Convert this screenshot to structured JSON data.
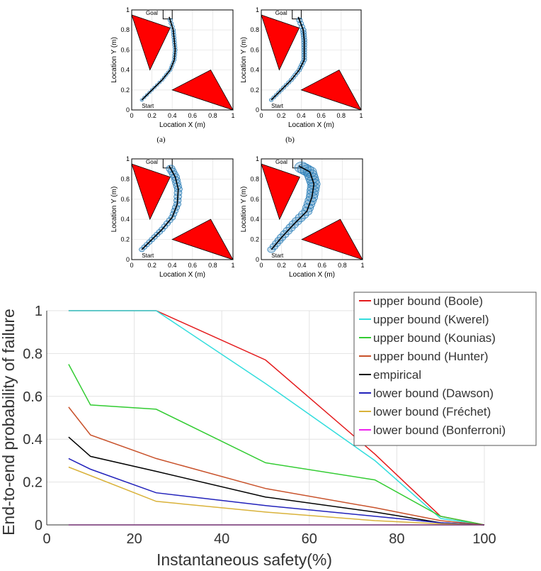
{
  "trajectory_panels": {
    "xlabel": "Location X (m)",
    "ylabel": "Location Y (m)",
    "start_label": "Start",
    "goal_label": "Goal",
    "x_ticks": [
      "0",
      "0.2",
      "0.4",
      "0.6",
      "0.8",
      "1"
    ],
    "y_ticks": [
      "0",
      "0.2",
      "0.4",
      "0.6",
      "0.8",
      "1"
    ],
    "colors": {
      "obstacle": "#ff0000",
      "uncertainty": "#1f77b4",
      "path": "#000000"
    },
    "obstacles": [
      [
        [
          0.0,
          0.95
        ],
        [
          0.38,
          0.82
        ],
        [
          0.18,
          0.4
        ]
      ],
      [
        [
          0.4,
          0.2
        ],
        [
          0.78,
          0.4
        ],
        [
          1.0,
          0.0
        ]
      ]
    ],
    "panels": [
      {
        "caption": "(a)",
        "path": [
          [
            0.1,
            0.1
          ],
          [
            0.2,
            0.2
          ],
          [
            0.3,
            0.3
          ],
          [
            0.38,
            0.4
          ],
          [
            0.42,
            0.5
          ],
          [
            0.43,
            0.6
          ],
          [
            0.42,
            0.7
          ],
          [
            0.41,
            0.8
          ],
          [
            0.37,
            0.93
          ]
        ],
        "spread": 0.012
      },
      {
        "caption": "(b)",
        "path": [
          [
            0.1,
            0.1
          ],
          [
            0.2,
            0.2
          ],
          [
            0.3,
            0.3
          ],
          [
            0.38,
            0.4
          ],
          [
            0.43,
            0.5
          ],
          [
            0.43,
            0.6
          ],
          [
            0.43,
            0.7
          ],
          [
            0.42,
            0.8
          ],
          [
            0.37,
            0.93
          ]
        ],
        "spread": 0.02
      },
      {
        "caption": "",
        "path": [
          [
            0.1,
            0.1
          ],
          [
            0.2,
            0.2
          ],
          [
            0.3,
            0.3
          ],
          [
            0.4,
            0.42
          ],
          [
            0.45,
            0.55
          ],
          [
            0.46,
            0.7
          ],
          [
            0.43,
            0.82
          ],
          [
            0.37,
            0.93
          ]
        ],
        "spread": 0.035
      },
      {
        "caption": "",
        "path": [
          [
            0.1,
            0.1
          ],
          [
            0.2,
            0.22
          ],
          [
            0.32,
            0.35
          ],
          [
            0.45,
            0.48
          ],
          [
            0.5,
            0.62
          ],
          [
            0.52,
            0.75
          ],
          [
            0.48,
            0.87
          ],
          [
            0.37,
            0.93
          ]
        ],
        "spread": 0.06
      }
    ]
  },
  "chart_data": {
    "type": "line",
    "xlabel": "Instantaneous safety(%)",
    "ylabel": "End-to-end probability of failure",
    "xlim": [
      0,
      100
    ],
    "ylim": [
      0,
      1
    ],
    "x_ticks": [
      "0",
      "20",
      "40",
      "60",
      "80",
      "100"
    ],
    "y_ticks": [
      "0",
      "0.2",
      "0.4",
      "0.6",
      "0.8",
      "1"
    ],
    "grid": true,
    "legend_position": "top-right",
    "series": [
      {
        "name": "upper bound (Boole)",
        "color": "#e41a1c",
        "points": [
          [
            5,
            1.0
          ],
          [
            10,
            1.0
          ],
          [
            25,
            1.0
          ],
          [
            50,
            0.77
          ],
          [
            75,
            0.33
          ],
          [
            90,
            0.04
          ],
          [
            100,
            0.0
          ]
        ]
      },
      {
        "name": "upper bound (Kwerel)",
        "color": "#33dddd",
        "points": [
          [
            5,
            1.0
          ],
          [
            10,
            1.0
          ],
          [
            25,
            1.0
          ],
          [
            50,
            0.66
          ],
          [
            75,
            0.3
          ],
          [
            90,
            0.03
          ],
          [
            100,
            0.0
          ]
        ]
      },
      {
        "name": "upper bound (Kounias)",
        "color": "#33cc33",
        "points": [
          [
            5,
            0.75
          ],
          [
            10,
            0.56
          ],
          [
            25,
            0.54
          ],
          [
            50,
            0.29
          ],
          [
            75,
            0.21
          ],
          [
            90,
            0.04
          ],
          [
            100,
            0.0
          ]
        ]
      },
      {
        "name": "upper bound (Hunter)",
        "color": "#c8512a",
        "points": [
          [
            5,
            0.55
          ],
          [
            10,
            0.42
          ],
          [
            25,
            0.31
          ],
          [
            50,
            0.17
          ],
          [
            75,
            0.08
          ],
          [
            90,
            0.02
          ],
          [
            100,
            0.0
          ]
        ]
      },
      {
        "name": "empirical",
        "color": "#000000",
        "points": [
          [
            5,
            0.41
          ],
          [
            10,
            0.32
          ],
          [
            25,
            0.25
          ],
          [
            50,
            0.13
          ],
          [
            75,
            0.06
          ],
          [
            90,
            0.01
          ],
          [
            100,
            0.0
          ]
        ]
      },
      {
        "name": "lower bound (Dawson)",
        "color": "#2222bb",
        "points": [
          [
            5,
            0.31
          ],
          [
            10,
            0.26
          ],
          [
            25,
            0.15
          ],
          [
            50,
            0.09
          ],
          [
            75,
            0.04
          ],
          [
            90,
            0.01
          ],
          [
            100,
            0.0
          ]
        ]
      },
      {
        "name": "lower bound (Fréchet)",
        "color": "#d9b23a",
        "points": [
          [
            5,
            0.27
          ],
          [
            10,
            0.23
          ],
          [
            25,
            0.11
          ],
          [
            50,
            0.06
          ],
          [
            75,
            0.02
          ],
          [
            90,
            0.005
          ],
          [
            100,
            0.0
          ]
        ]
      },
      {
        "name": "lower bound (Bonferroni)",
        "color": "#ee22ee",
        "points": [
          [
            5,
            0.0
          ],
          [
            10,
            0.0
          ],
          [
            25,
            0.0
          ],
          [
            50,
            0.0
          ],
          [
            75,
            0.0
          ],
          [
            90,
            0.0
          ],
          [
            100,
            0.0
          ]
        ]
      }
    ]
  }
}
